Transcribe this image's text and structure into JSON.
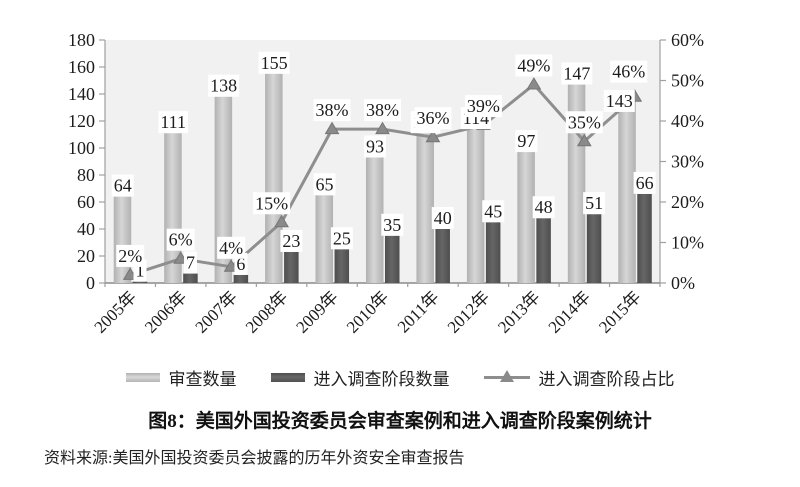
{
  "figure": {
    "title": "图8：美国外国投资委员会审查案例和进入调查阶段案例统计",
    "source": "资料来源:美国外国投资委员会披露的历年外资安全审查报告"
  },
  "chart_data": {
    "type": "bar",
    "subtype": "bar-line-combo",
    "title": "图8：美国外国投资委员会审查案例和进入调查阶段案例统计",
    "categories": [
      "2005年",
      "2006年",
      "2007年",
      "2008年",
      "2009年",
      "2010年",
      "2011年",
      "2012年",
      "2013年",
      "2014年",
      "2015年"
    ],
    "series": [
      {
        "name": "审查数量",
        "type": "bar",
        "axis": "left",
        "values": [
          64,
          111,
          138,
          155,
          65,
          93,
          111,
          114,
          97,
          147,
          143
        ]
      },
      {
        "name": "进入调查阶段数量",
        "type": "bar",
        "axis": "left",
        "values": [
          1,
          7,
          6,
          23,
          25,
          35,
          40,
          45,
          48,
          51,
          66
        ]
      },
      {
        "name": "进入调查阶段占比",
        "type": "line",
        "axis": "right",
        "values": [
          2,
          6,
          4,
          15,
          38,
          38,
          36,
          39,
          49,
          35,
          46
        ],
        "labels": [
          "2%",
          "6%",
          "4%",
          "15%",
          "38%",
          "38%",
          "36%",
          "39%",
          "49%",
          "35%",
          "46%"
        ]
      }
    ],
    "left_axis": {
      "min": 0,
      "max": 180,
      "step": 20,
      "ticks": [
        "0",
        "20",
        "40",
        "60",
        "80",
        "100",
        "120",
        "140",
        "160",
        "180"
      ]
    },
    "right_axis": {
      "min": 0,
      "max": 60,
      "step": 10,
      "suffix": "%",
      "ticks": [
        "0%",
        "10%",
        "20%",
        "30%",
        "40%",
        "50%",
        "60%"
      ]
    },
    "legend": [
      "审查数量",
      "进入调查阶段数量",
      "进入调查阶段占比"
    ],
    "legend_position": "bottom",
    "grid": false,
    "colors": {
      "bar_light_edge": "#b1b1b1",
      "bar_light_mid": "#d6d6d6",
      "bar_dark_edge": "#4e4e4e",
      "bar_dark_mid": "#666666",
      "line": "#8e8e8e",
      "marker": "#8a8a8a",
      "marker_edge": "#757575",
      "plot_bg": "#f1f1f1",
      "axis": "#9f9f9f",
      "baseline": "#8a8a8a",
      "label_bg": "#ffffff",
      "text": "#1c1c1c"
    }
  }
}
